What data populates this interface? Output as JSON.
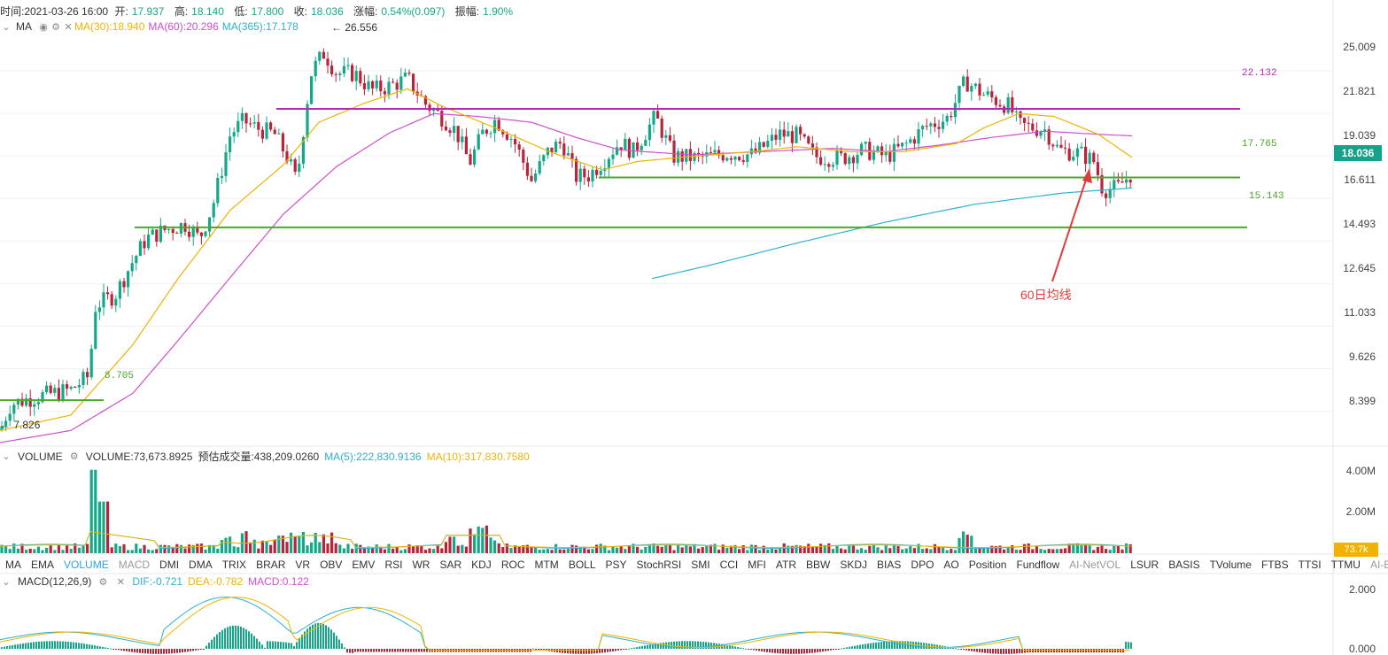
{
  "header": {
    "time_label": "时间:2021-03-26 16:00",
    "open_label": "开:",
    "open_value": "17.937",
    "high_label": "高:",
    "high_value": "18.140",
    "low_label": "低:",
    "low_value": "17.800",
    "close_label": "收:",
    "close_value": "18.036",
    "change_label": "涨幅:",
    "change_value": "0.54%(0.097)",
    "amp_label": "振幅:",
    "amp_value": "1.90%"
  },
  "ma_row": {
    "label": "MA",
    "ma30": "MA(30):18.940",
    "ma60": "MA(60):20.296",
    "ma365": "MA(365):17.178",
    "max_marker": "← 26.556",
    "min_marker": "← 7.826"
  },
  "volume_row": {
    "label": "VOLUME",
    "volume": "VOLUME:73,673.8925",
    "est": "预估成交量:438,209.0260",
    "ma5": "MA(5):222,830.9136",
    "ma10": "MA(10):317,830.7580"
  },
  "macd_row": {
    "label": "MACD(12,26,9)",
    "dif": "DIF:-0.721",
    "dea": "DEA:-0.782",
    "macd": "MACD:0.122"
  },
  "indicator_tabs": [
    "MA",
    "EMA",
    "VOLUME",
    "MACD",
    "DMI",
    "DMA",
    "TRIX",
    "BRAR",
    "VR",
    "OBV",
    "EMV",
    "RSI",
    "WR",
    "SAR",
    "KDJ",
    "ROC",
    "MTM",
    "BOLL",
    "PSY",
    "StochRSI",
    "SMI",
    "CCI",
    "MFI",
    "ATR",
    "BBW",
    "SKDJ",
    "BIAS",
    "DPO",
    "AO",
    "Position",
    "Fundflow",
    "AI-NetVOL",
    "LSUR",
    "BASIS",
    "TVolume",
    "FTBS",
    "TTSI",
    "TTMU",
    "AI-BSI"
  ],
  "active_tab": "VOLUME",
  "price_axis": [
    "25.009",
    "21.821",
    "19.039",
    "16.611",
    "14.493",
    "12.645",
    "11.033",
    "9.626",
    "8.399"
  ],
  "volume_axis": [
    "4.00M",
    "2.00M"
  ],
  "macd_axis": [
    "2.000",
    "0.000"
  ],
  "price_tag": "18.036",
  "volume_tag": "73.7k",
  "levels": [
    {
      "value": 22.132,
      "label": "22.132",
      "color": "#b32db3"
    },
    {
      "value": 17.765,
      "label": "17.765",
      "color": "#4aa82a"
    },
    {
      "value": 15.143,
      "label": "15.143",
      "color": "#4aa82a"
    },
    {
      "value": 8.705,
      "label": "8.705",
      "color": "#4aa82a"
    }
  ],
  "annotation": "60日均线",
  "colors": {
    "up": "#14a88a",
    "down": "#b8243a",
    "ma30": "#f0b400",
    "ma60": "#d04fd0",
    "ma365": "#2ab2d0",
    "level_green": "#4aa82a",
    "level_purple": "#b32db3",
    "annotation": "#e03b3b"
  },
  "chart_data": {
    "type": "candlestick",
    "scale": "log",
    "ylim": [
      7.6,
      28.0
    ],
    "last": {
      "open": 17.937,
      "high": 18.14,
      "low": 17.8,
      "close": 18.036
    },
    "price_path": [
      [
        0,
        7.9
      ],
      [
        12,
        8.6
      ],
      [
        40,
        8.8
      ],
      [
        80,
        9.0
      ],
      [
        100,
        9.4
      ],
      [
        108,
        11.8
      ],
      [
        130,
        12.2
      ],
      [
        150,
        13.6
      ],
      [
        165,
        14.6
      ],
      [
        185,
        15.0
      ],
      [
        210,
        15.3
      ],
      [
        225,
        14.6
      ],
      [
        240,
        16.2
      ],
      [
        260,
        20.4
      ],
      [
        275,
        21.3
      ],
      [
        290,
        20.8
      ],
      [
        310,
        20.4
      ],
      [
        325,
        18.9
      ],
      [
        335,
        17.5
      ],
      [
        345,
        22.0
      ],
      [
        352,
        25.0
      ],
      [
        366,
        26.5
      ],
      [
        380,
        24.8
      ],
      [
        400,
        24.8
      ],
      [
        420,
        23.5
      ],
      [
        440,
        23.8
      ],
      [
        460,
        24.4
      ],
      [
        480,
        22.5
      ],
      [
        500,
        21.5
      ],
      [
        515,
        20.6
      ],
      [
        530,
        18.6
      ],
      [
        545,
        20.5
      ],
      [
        560,
        21.4
      ],
      [
        580,
        20.0
      ],
      [
        600,
        17.6
      ],
      [
        620,
        19.4
      ],
      [
        635,
        19.9
      ],
      [
        650,
        17.8
      ],
      [
        665,
        17.9
      ],
      [
        680,
        18.7
      ],
      [
        700,
        19.9
      ],
      [
        715,
        19.3
      ],
      [
        740,
        21.6
      ],
      [
        760,
        19.0
      ],
      [
        790,
        18.9
      ],
      [
        820,
        19.2
      ],
      [
        850,
        19.1
      ],
      [
        880,
        20.4
      ],
      [
        900,
        20.3
      ],
      [
        920,
        19.0
      ],
      [
        950,
        18.9
      ],
      [
        975,
        19.4
      ],
      [
        1000,
        19.0
      ],
      [
        1020,
        19.6
      ],
      [
        1045,
        20.9
      ],
      [
        1070,
        21.5
      ],
      [
        1090,
        24.2
      ],
      [
        1110,
        23.2
      ],
      [
        1140,
        22.3
      ],
      [
        1150,
        21.0
      ],
      [
        1180,
        20.7
      ],
      [
        1195,
        19.4
      ],
      [
        1220,
        19.2
      ],
      [
        1235,
        18.7
      ],
      [
        1245,
        17.1
      ],
      [
        1262,
        17.2
      ],
      [
        1278,
        18.036
      ]
    ],
    "ma30_path": [
      [
        0,
        7.9
      ],
      [
        80,
        8.3
      ],
      [
        150,
        10.4
      ],
      [
        200,
        12.8
      ],
      [
        260,
        16.0
      ],
      [
        320,
        18.5
      ],
      [
        360,
        21.2
      ],
      [
        410,
        22.5
      ],
      [
        460,
        23.6
      ],
      [
        500,
        22.3
      ],
      [
        560,
        20.8
      ],
      [
        620,
        19.3
      ],
      [
        680,
        18.2
      ],
      [
        720,
        18.7
      ],
      [
        780,
        19.0
      ],
      [
        850,
        19.3
      ],
      [
        900,
        19.6
      ],
      [
        960,
        19.3
      ],
      [
        1020,
        19.3
      ],
      [
        1080,
        19.8
      ],
      [
        1110,
        20.8
      ],
      [
        1150,
        21.8
      ],
      [
        1190,
        21.6
      ],
      [
        1240,
        20.4
      ],
      [
        1278,
        18.94
      ]
    ],
    "ma60_path": [
      [
        0,
        7.6
      ],
      [
        80,
        7.9
      ],
      [
        150,
        8.9
      ],
      [
        200,
        10.5
      ],
      [
        260,
        12.9
      ],
      [
        320,
        15.8
      ],
      [
        380,
        18.4
      ],
      [
        440,
        20.5
      ],
      [
        490,
        21.8
      ],
      [
        540,
        21.6
      ],
      [
        600,
        21.2
      ],
      [
        650,
        20.2
      ],
      [
        700,
        19.4
      ],
      [
        780,
        19.1
      ],
      [
        860,
        19.3
      ],
      [
        940,
        19.5
      ],
      [
        1000,
        19.3
      ],
      [
        1060,
        19.7
      ],
      [
        1120,
        20.2
      ],
      [
        1180,
        20.6
      ],
      [
        1240,
        20.4
      ],
      [
        1278,
        20.296
      ]
    ],
    "ma365_path": [
      [
        736,
        12.85
      ],
      [
        800,
        13.4
      ],
      [
        900,
        14.4
      ],
      [
        1000,
        15.4
      ],
      [
        1100,
        16.3
      ],
      [
        1200,
        16.9
      ],
      [
        1278,
        17.178
      ]
    ],
    "volume_max": 4.5,
    "macd_range": [
      -0.15,
      2.5
    ]
  }
}
